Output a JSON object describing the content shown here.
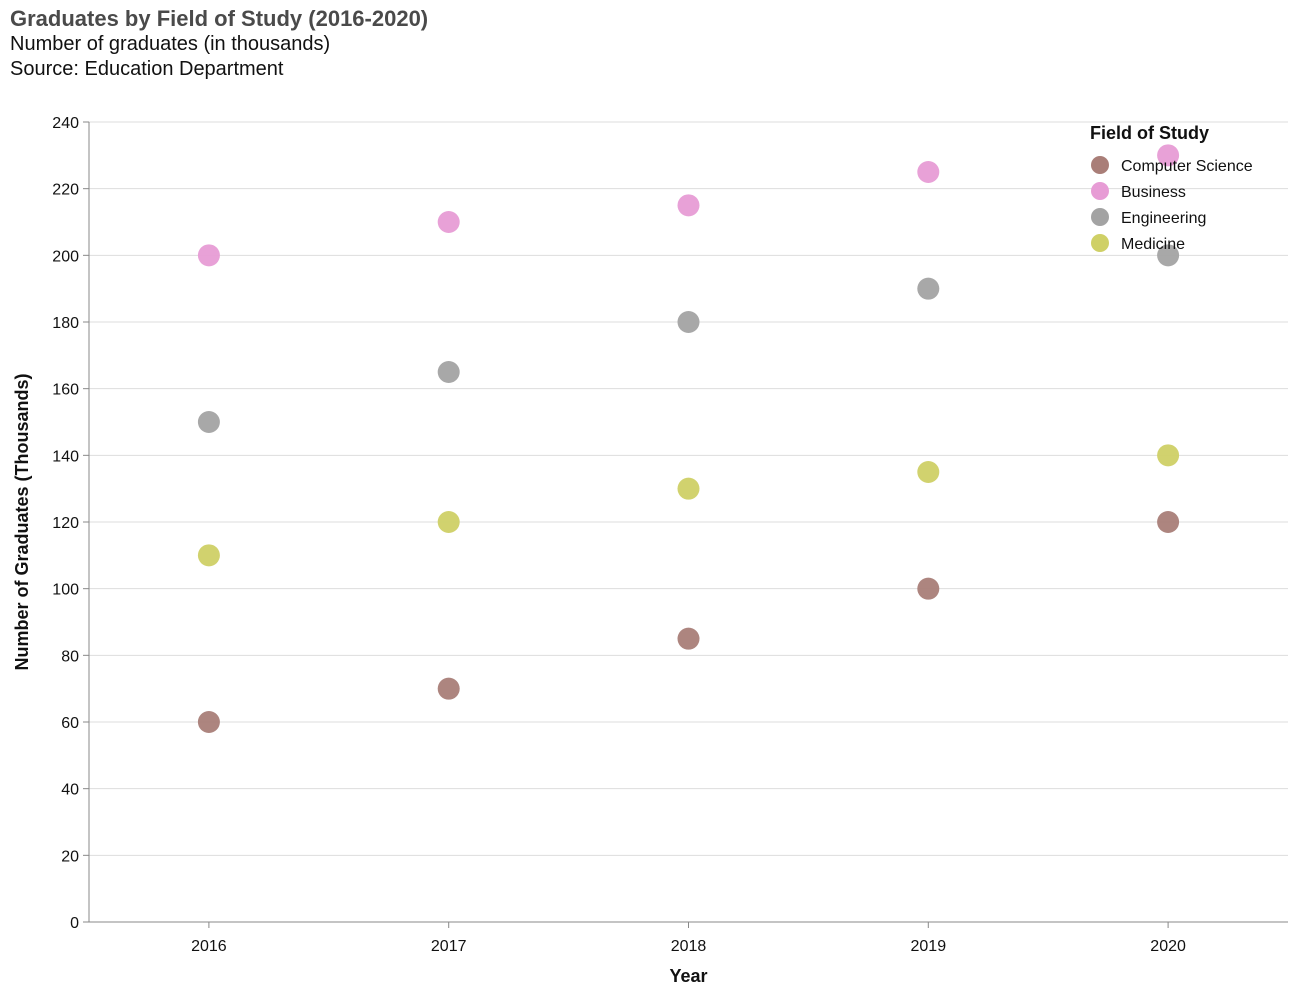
{
  "chart_data": {
    "type": "scatter",
    "title": "Graduates by Field of Study (2016-2020)",
    "subtitle": [
      "Number of graduates (in thousands)",
      "Source: Education Department"
    ],
    "xlabel": "Year",
    "ylabel": "Number of Graduates (Thousands)",
    "x": [
      "2016",
      "2017",
      "2018",
      "2019",
      "2020"
    ],
    "ylim": [
      0,
      240
    ],
    "yticks": [
      0,
      20,
      40,
      60,
      80,
      100,
      120,
      140,
      160,
      180,
      200,
      220,
      240
    ],
    "grid": true,
    "legend": {
      "title": "Field of Study",
      "placement": "top-right"
    },
    "series": [
      {
        "name": "Computer Science",
        "color": "#a97e78",
        "values": [
          60,
          70,
          85,
          100,
          120
        ]
      },
      {
        "name": "Business",
        "color": "#e79cd5",
        "values": [
          200,
          210,
          215,
          225,
          230
        ]
      },
      {
        "name": "Engineering",
        "color": "#a3a3a3",
        "values": [
          150,
          165,
          180,
          190,
          200
        ]
      },
      {
        "name": "Medicine",
        "color": "#cfd066",
        "values": [
          110,
          120,
          130,
          135,
          140
        ]
      }
    ]
  }
}
